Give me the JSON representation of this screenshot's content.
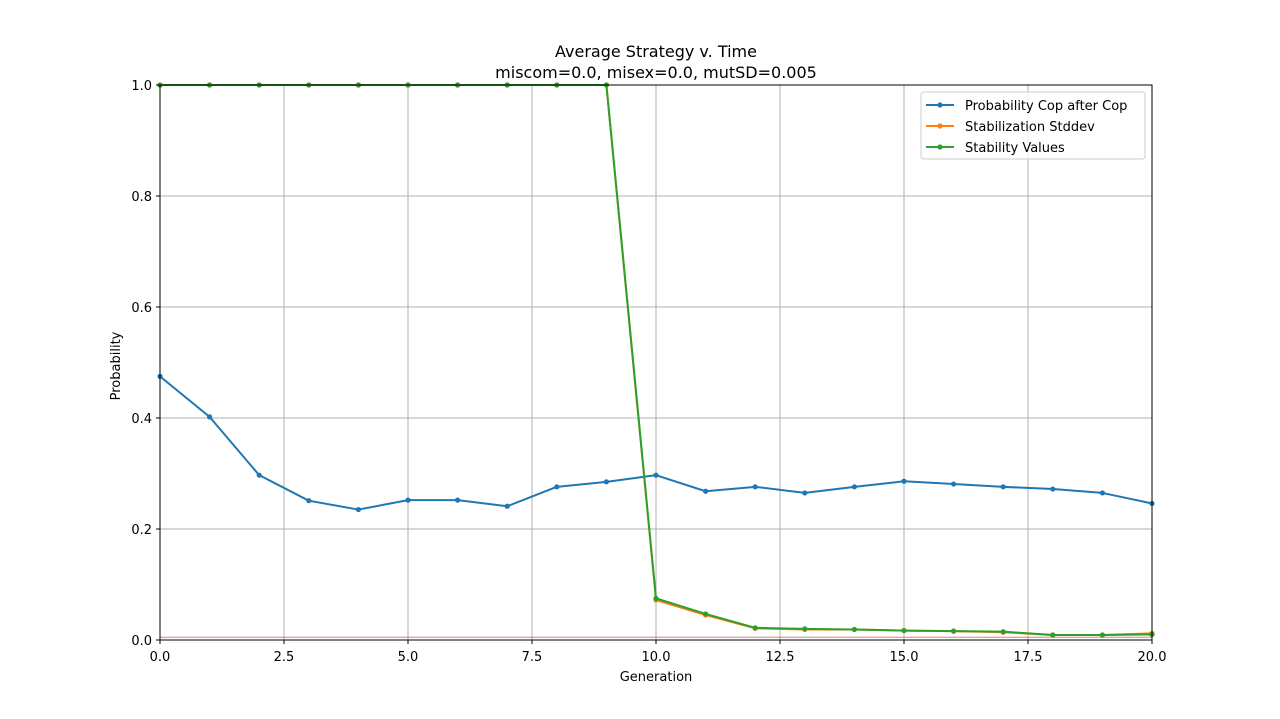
{
  "chart_data": {
    "type": "line",
    "title": "Average Strategy v. Time",
    "subtitle": "miscom=0.0, misex=0.0, mutSD=0.005",
    "xlabel": "Generation",
    "ylabel": "Probability",
    "xlim": [
      0,
      20
    ],
    "ylim": [
      0,
      1
    ],
    "xticks": [
      0.0,
      2.5,
      5.0,
      7.5,
      10.0,
      12.5,
      15.0,
      17.5,
      20.0
    ],
    "xtick_labels": [
      "0.0",
      "2.5",
      "5.0",
      "7.5",
      "10.0",
      "12.5",
      "15.0",
      "17.5",
      "20.0"
    ],
    "yticks": [
      0.0,
      0.2,
      0.4,
      0.6,
      0.8,
      1.0
    ],
    "ytick_labels": [
      "0.0",
      "0.2",
      "0.4",
      "0.6",
      "0.8",
      "1.0"
    ],
    "grid": true,
    "legend_position": "top-right",
    "x": [
      0,
      1,
      2,
      3,
      4,
      5,
      6,
      7,
      8,
      9,
      10,
      11,
      12,
      13,
      14,
      15,
      16,
      17,
      18,
      19,
      20
    ],
    "series": [
      {
        "name": "Probability Cop after Cop",
        "color": "#1f77b4",
        "values": [
          0.475,
          0.402,
          0.297,
          0.251,
          0.235,
          0.252,
          0.252,
          0.241,
          0.276,
          0.285,
          0.297,
          0.268,
          0.276,
          0.265,
          0.276,
          0.286,
          0.281,
          0.276,
          0.272,
          0.265,
          0.246
        ]
      },
      {
        "name": "Stabilization Stddev",
        "color": "#ff7f0e",
        "values": [
          1.0,
          1.0,
          1.0,
          1.0,
          1.0,
          1.0,
          1.0,
          1.0,
          1.0,
          1.0,
          0.072,
          0.045,
          0.021,
          0.019,
          0.019,
          0.017,
          0.016,
          0.014,
          0.009,
          0.009,
          0.012
        ]
      },
      {
        "name": "Stability Values",
        "color": "#2ca02c",
        "values": [
          1.0,
          1.0,
          1.0,
          1.0,
          1.0,
          1.0,
          1.0,
          1.0,
          1.0,
          1.0,
          0.075,
          0.047,
          0.022,
          0.02,
          0.019,
          0.017,
          0.016,
          0.015,
          0.009,
          0.009,
          0.01
        ]
      }
    ],
    "reference_line": {
      "y": 0.005,
      "color": "#d62728"
    }
  }
}
